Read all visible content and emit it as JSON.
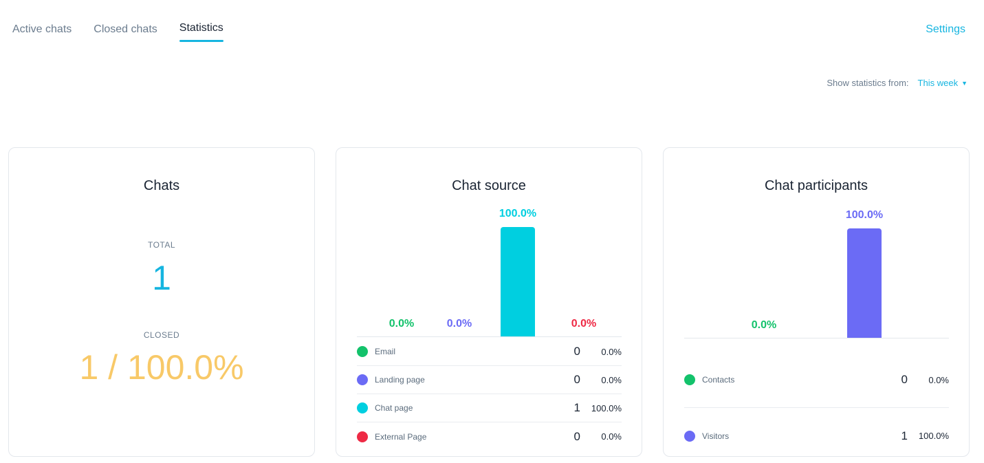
{
  "nav": {
    "tabs": [
      {
        "label": "Active chats"
      },
      {
        "label": "Closed chats"
      },
      {
        "label": "Statistics"
      }
    ],
    "settings_label": "Settings"
  },
  "filter": {
    "label": "Show statistics from:",
    "value": "This week"
  },
  "colors": {
    "accent": "#16b5e0",
    "green": "#13c26b",
    "purple": "#6b6bf5",
    "cyan": "#00cfe0",
    "red": "#ee2a45",
    "closed_yellow": "#f8c968"
  },
  "cards": {
    "chats": {
      "title": "Chats",
      "total_label": "TOTAL",
      "total_value": "1",
      "closed_label": "CLOSED",
      "closed_value": "1 / 100.0%"
    },
    "source": {
      "title": "Chat source",
      "items": [
        {
          "name": "Email",
          "count": "0",
          "pct": "0.0%",
          "value": 0.0,
          "color": "#13c26b"
        },
        {
          "name": "Landing page",
          "count": "0",
          "pct": "0.0%",
          "value": 0.0,
          "color": "#6b6bf5"
        },
        {
          "name": "Chat page",
          "count": "1",
          "pct": "100.0%",
          "value": 100.0,
          "color": "#00cfe0"
        },
        {
          "name": "External Page",
          "count": "0",
          "pct": "0.0%",
          "value": 0.0,
          "color": "#ee2a45"
        }
      ]
    },
    "participants": {
      "title": "Chat participants",
      "items": [
        {
          "name": "Contacts",
          "count": "0",
          "pct": "0.0%",
          "value": 0.0,
          "color": "#13c26b"
        },
        {
          "name": "Visitors",
          "count": "1",
          "pct": "100.0%",
          "value": 100.0,
          "color": "#6b6bf5"
        }
      ]
    }
  }
}
